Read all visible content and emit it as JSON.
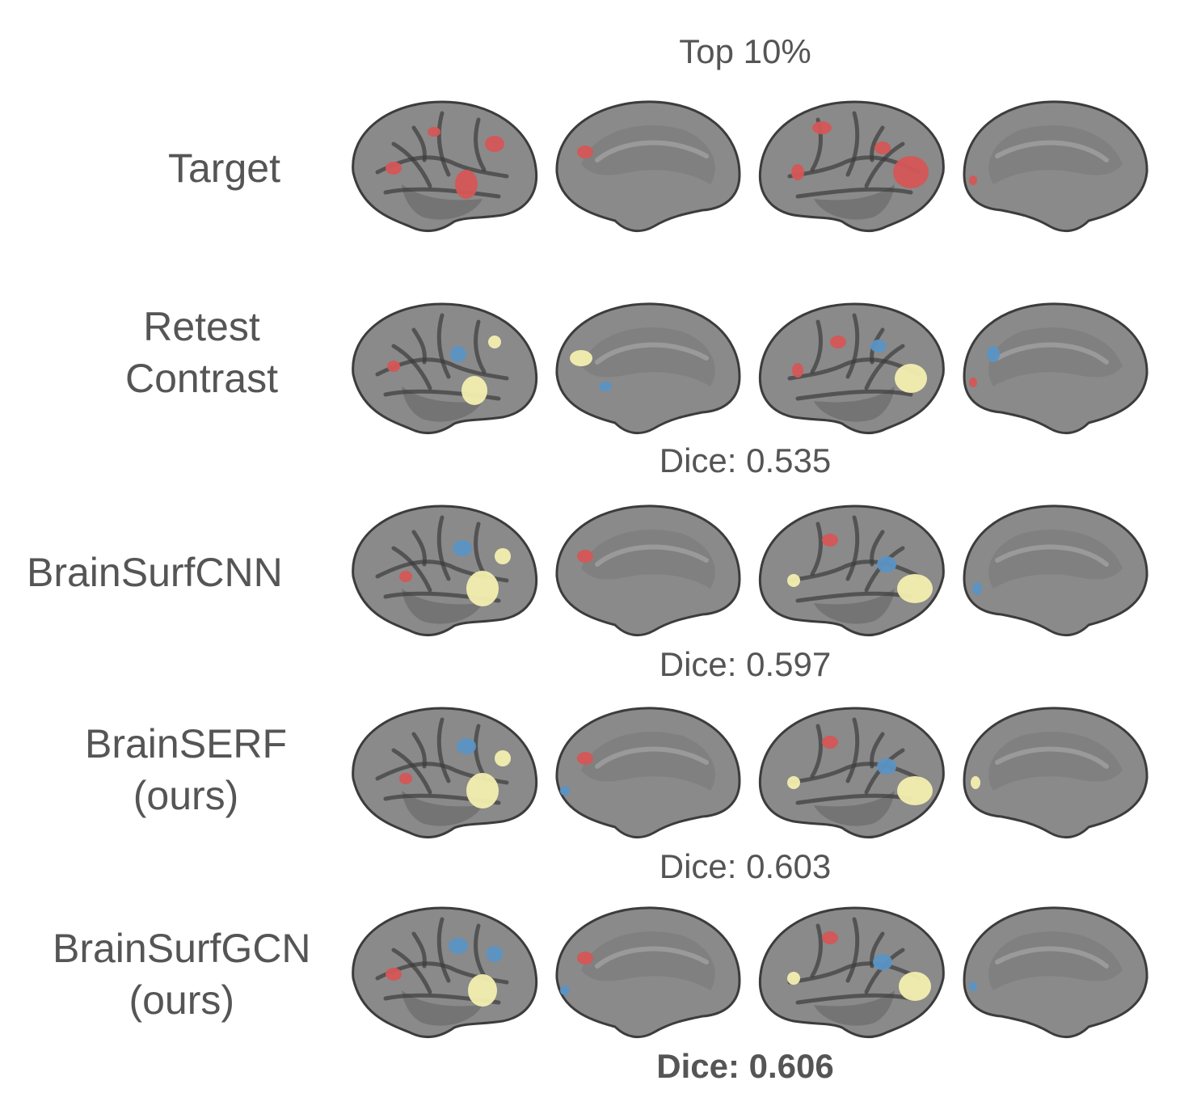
{
  "figure": {
    "column_title": "Top 10%",
    "colors": {
      "brain": "#8a8a8a",
      "sulcus_shadow": "#3c3c3c",
      "target_only": "#d55656",
      "prediction_only": "#5b93c4",
      "overlap": "#f3efb0"
    },
    "views": [
      "left-lateral",
      "left-medial",
      "right-lateral",
      "right-medial"
    ],
    "rows": [
      {
        "id": "target",
        "label_line1": "Target",
        "label_line2": "",
        "dice": ""
      },
      {
        "id": "retest",
        "label_line1": "Retest",
        "label_line2": "Contrast",
        "dice": "Dice: 0.535"
      },
      {
        "id": "brainsurfcnn",
        "label_line1": "BrainSurfCNN",
        "label_line2": "",
        "dice": "Dice: 0.597"
      },
      {
        "id": "brainserf",
        "label_line1": "BrainSERF",
        "label_line2": "(ours)",
        "dice": "Dice: 0.603"
      },
      {
        "id": "brainsurfgcn",
        "label_line1": "BrainSurfGCN",
        "label_line2": "(ours)",
        "dice": "Dice: 0.606",
        "dice_bold": true
      }
    ]
  }
}
